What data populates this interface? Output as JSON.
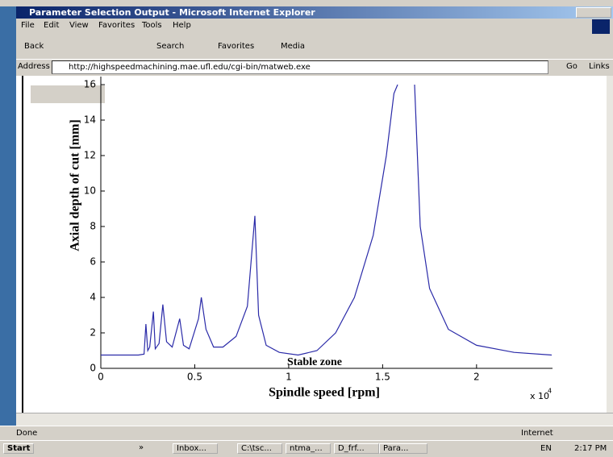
{
  "window": {
    "title": "Parameter Selection Output - Microsoft Internet Explorer",
    "menu": [
      "File",
      "Edit",
      "View",
      "Favorites",
      "Tools",
      "Help"
    ],
    "toolbar": [
      "Back",
      "Search",
      "Favorites",
      "Media"
    ],
    "address_label": "Address",
    "url": "http://highspeedmachining.mae.ufl.edu/cgi-bin/matweb.exe",
    "go": "Go",
    "links": "Links",
    "status": "Done",
    "zone": "Internet"
  },
  "taskbar": {
    "start": "Start",
    "more": "»",
    "items": [
      "Inbox...",
      "C:\\tsc...",
      "ntma_...",
      "D_frf...",
      "Para..."
    ],
    "language": "EN",
    "clock": "2:17 PM"
  },
  "chart_data": {
    "type": "line",
    "xlabel": "Spindle speed [rpm]",
    "ylabel": "Axial depth of cut [mm]",
    "x_multiplier": "x 10",
    "x_multiplier_exponent": "4",
    "annotation": "Stable zone",
    "x": [
      0,
      0.2,
      0.23,
      0.24,
      0.25,
      0.26,
      0.28,
      0.29,
      0.31,
      0.33,
      0.35,
      0.38,
      0.42,
      0.44,
      0.47,
      0.52,
      0.535,
      0.56,
      0.6,
      0.65,
      0.72,
      0.78,
      0.82,
      0.84,
      0.88,
      0.95,
      1.05,
      1.15,
      1.25,
      1.35,
      1.45,
      1.52,
      1.56,
      1.58,
      1.62,
      1.67,
      1.7,
      1.75,
      1.85,
      2.0,
      2.2,
      2.4
    ],
    "series": [
      {
        "color": "#2a2aa8",
        "values": [
          0.75,
          0.75,
          0.8,
          2.5,
          1.0,
          1.2,
          3.2,
          1.1,
          1.4,
          3.6,
          1.5,
          1.2,
          2.8,
          1.3,
          1.1,
          2.8,
          4.0,
          2.2,
          1.2,
          1.2,
          1.8,
          3.5,
          8.6,
          3.0,
          1.3,
          0.9,
          0.75,
          1.0,
          2.0,
          4.0,
          7.5,
          12.0,
          15.5,
          16,
          null,
          16,
          8,
          4.5,
          2.2,
          1.3,
          0.9,
          0.75
        ]
      }
    ],
    "xlim": [
      0,
      2.4
    ],
    "ylim": [
      0,
      16
    ],
    "xticks": [
      0,
      0.5,
      1,
      1.5,
      2
    ],
    "yticks": [
      0,
      2,
      4,
      6,
      8,
      10,
      12,
      14,
      16
    ]
  }
}
